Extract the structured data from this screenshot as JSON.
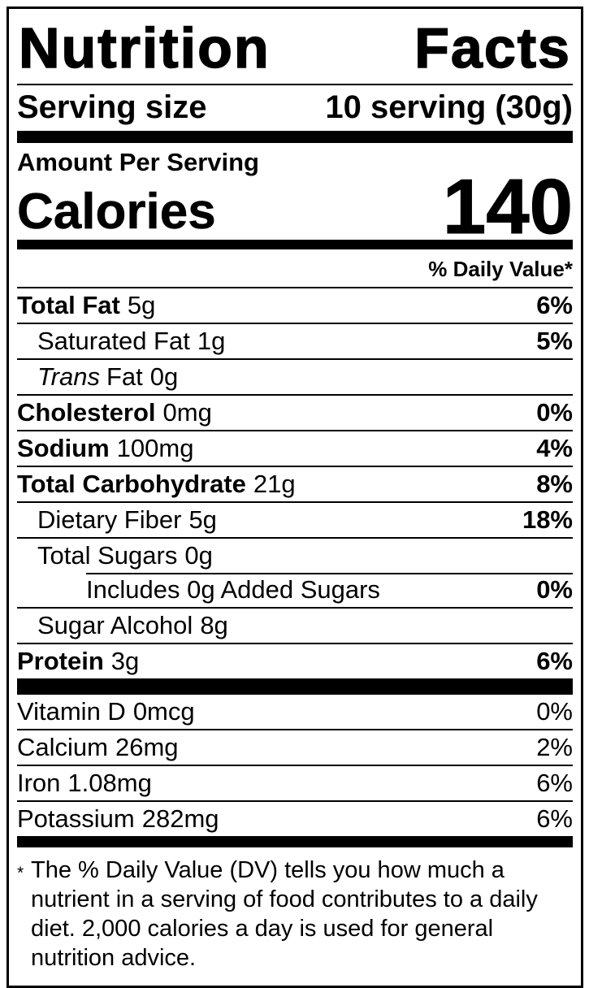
{
  "colors": {
    "ink": "#000000",
    "paper": "#ffffff"
  },
  "header": {
    "title_words": [
      "Nutrition",
      "Facts"
    ],
    "serving_size_label": "Serving size",
    "serving_size_value": "10 serving (30g)"
  },
  "calories_section": {
    "amount_per_serving": "Amount Per Serving",
    "calories_label": "Calories",
    "calories_value": "140"
  },
  "daily_value_header": "% Daily Value*",
  "nutrients": [
    {
      "name": "Total Fat",
      "amount": "5g",
      "dv": "6%"
    },
    {
      "name": "Saturated Fat",
      "amount": "1g",
      "dv": "5%"
    },
    {
      "name_italic": "Trans",
      "name": "Fat",
      "amount": "0g",
      "dv": ""
    },
    {
      "name": "Cholesterol",
      "amount": "0mg",
      "dv": "0%"
    },
    {
      "name": "Sodium",
      "amount": "100mg",
      "dv": "4%"
    },
    {
      "name": "Total Carbohydrate",
      "amount": "21g",
      "dv": "8%"
    },
    {
      "name": "Dietary Fiber",
      "amount": "5g",
      "dv": "18%"
    },
    {
      "name": "Total Sugars",
      "amount": "0g",
      "dv": ""
    },
    {
      "name": "Includes 0g Added Sugars",
      "amount": "",
      "dv": "0%"
    },
    {
      "name": "Sugar Alcohol",
      "amount": "8g",
      "dv": ""
    },
    {
      "name": "Protein",
      "amount": "3g",
      "dv": "6%"
    }
  ],
  "micronutrients": [
    {
      "name": "Vitamin D",
      "amount": "0mcg",
      "dv": "0%"
    },
    {
      "name": "Calcium",
      "amount": "26mg",
      "dv": "2%"
    },
    {
      "name": "Iron",
      "amount": "1.08mg",
      "dv": "6%"
    },
    {
      "name": "Potassium",
      "amount": "282mg",
      "dv": "6%"
    }
  ],
  "footnote": {
    "marker": "*",
    "text": "The % Daily Value (DV) tells you how much a nutrient in a serving of food contributes to a daily diet. 2,000 calories a day is used for general nutrition advice."
  }
}
